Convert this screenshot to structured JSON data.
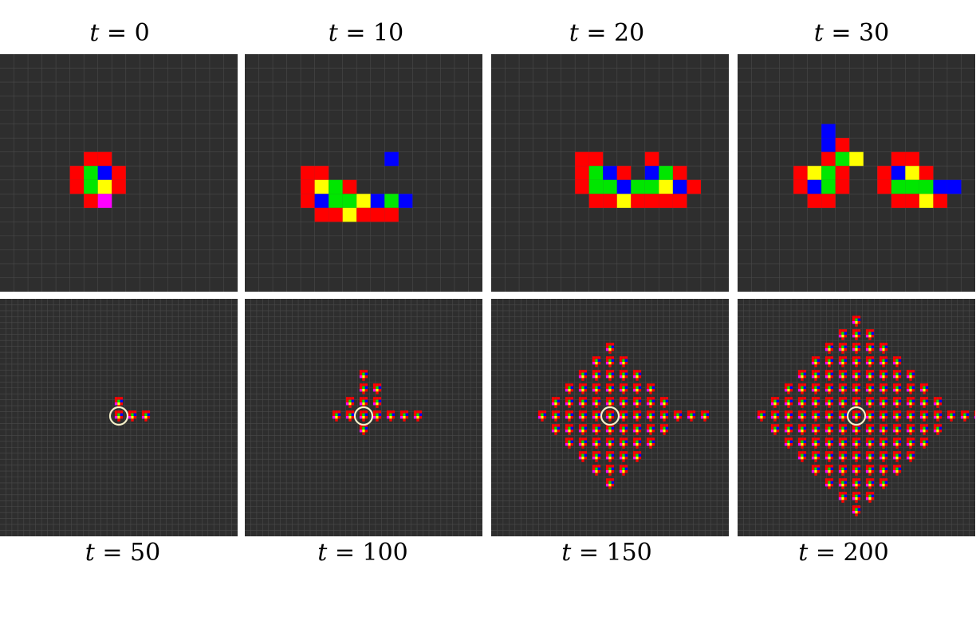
{
  "colors": {
    "background": "#2e2e2e",
    "grid": "#4a4a4a",
    "red": "#ff0000",
    "green": "#00e600",
    "blue": "#0000ff",
    "yellow": "#ffff00",
    "magenta": "#ff00ff",
    "marker": "#f5f0c8"
  },
  "top_labels": [
    {
      "var": "t",
      "eq": "= 0"
    },
    {
      "var": "t",
      "eq": "= 10"
    },
    {
      "var": "t",
      "eq": "= 20"
    },
    {
      "var": "t",
      "eq": "= 30"
    }
  ],
  "bottom_labels": [
    {
      "var": "t",
      "eq": "= 50"
    },
    {
      "var": "t",
      "eq": "= 100"
    },
    {
      "var": "t",
      "eq": "= 150"
    },
    {
      "var": "t",
      "eq": "= 200"
    }
  ],
  "frames": [
    {
      "time": 0,
      "grid_size": 17,
      "rows": [
        "......RR.........",
        ".....RGBR........",
        ".....RGYR........",
        "......RM........."
      ],
      "row_offset": 7
    },
    {
      "time": 10,
      "grid_size": 17,
      "rows": [
        "..........B......",
        "....RR...........",
        "....RYGR.........",
        "....RBGGYBGB.....",
        ".....RRYRRR......"
      ],
      "row_offset": 7
    },
    {
      "time": 20,
      "grid_size": 17,
      "rows": [
        "......RR...R.....",
        "......RGBR.BGR...",
        "......RGGBGGYBR..",
        ".......RRYRRRR..."
      ],
      "row_offset": 7
    },
    {
      "time": 30,
      "grid_size": 17,
      "rows": [
        "......B..........",
        "......BR.........",
        "......RGY..RR....",
        "....RYGR..RBYR...",
        "....RBGR..RGGGBB.",
        ".....RR....RRYR.."
      ],
      "row_offset": 5
    },
    {
      "time": 50,
      "grid_size": 40,
      "clusters": [
        [
          0,
          -1
        ],
        [
          0,
          0
        ],
        [
          1,
          0
        ],
        [
          2,
          0
        ]
      ],
      "marker": [
        0,
        0
      ]
    },
    {
      "time": 100,
      "grid_size": 40,
      "clusters": [
        [
          0,
          -3
        ],
        [
          0,
          -2
        ],
        [
          1,
          -2
        ],
        [
          -1,
          -1
        ],
        [
          0,
          -1
        ],
        [
          1,
          -1
        ],
        [
          -2,
          0
        ],
        [
          -1,
          0
        ],
        [
          0,
          0
        ],
        [
          1,
          0
        ],
        [
          2,
          0
        ],
        [
          3,
          0
        ],
        [
          4,
          0
        ],
        [
          0,
          1
        ]
      ],
      "marker": [
        0,
        0
      ]
    },
    {
      "time": 150,
      "grid_size": 40,
      "clusters": "diamond-5",
      "marker": [
        0,
        0
      ]
    },
    {
      "time": 200,
      "grid_size": 40,
      "clusters": "diamond-7",
      "marker": [
        0,
        0
      ]
    }
  ]
}
